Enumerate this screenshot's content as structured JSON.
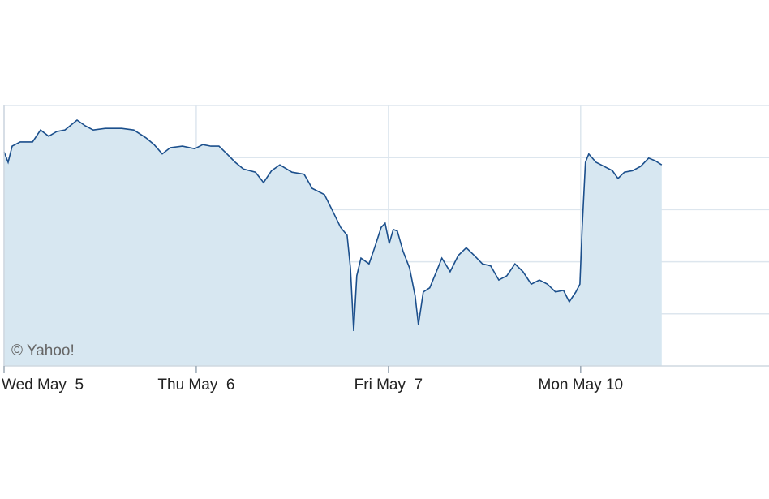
{
  "chart_data": {
    "type": "area",
    "annotation": "© Yahoo!",
    "x": [
      0,
      0.021,
      0.042,
      0.084,
      0.148,
      0.19,
      0.232,
      0.274,
      0.316,
      0.38,
      0.422,
      0.464,
      0.527,
      0.612,
      0.675,
      0.738,
      0.781,
      0.823,
      0.865,
      0.928,
      0.992,
      1.034,
      1.076,
      1.118,
      1.16,
      1.203,
      1.245,
      1.308,
      1.35,
      1.392,
      1.435,
      1.498,
      1.561,
      1.603,
      1.667,
      1.709,
      1.751,
      1.785,
      1.802,
      1.819,
      1.835,
      1.857,
      1.899,
      1.928,
      1.962,
      1.983,
      2.004,
      2.025,
      2.046,
      2.076,
      2.11,
      2.139,
      2.156,
      2.181,
      2.215,
      2.257,
      2.278,
      2.321,
      2.363,
      2.405,
      2.447,
      2.489,
      2.532,
      2.574,
      2.616,
      2.658,
      2.7,
      2.743,
      2.785,
      2.827,
      2.869,
      2.911,
      2.941,
      2.975,
      2.996,
      3.008,
      3.025,
      3.042,
      3.08,
      3.122,
      3.165,
      3.194,
      3.228,
      3.27,
      3.312,
      3.354,
      3.388,
      3.422
    ],
    "series": [
      {
        "color": "#1b4f8c",
        "fill": "#d7e7f1",
        "values": [
          4.11,
          3.91,
          4.22,
          4.3,
          4.3,
          4.53,
          4.41,
          4.5,
          4.53,
          4.72,
          4.61,
          4.53,
          4.56,
          4.56,
          4.53,
          4.38,
          4.25,
          4.07,
          4.19,
          4.22,
          4.17,
          4.25,
          4.22,
          4.22,
          4.07,
          3.91,
          3.78,
          3.72,
          3.52,
          3.75,
          3.86,
          3.72,
          3.68,
          3.41,
          3.29,
          2.98,
          2.66,
          2.51,
          1.88,
          0.67,
          1.73,
          2.07,
          1.96,
          2.27,
          2.66,
          2.74,
          2.35,
          2.62,
          2.59,
          2.2,
          1.88,
          1.34,
          0.79,
          1.42,
          1.5,
          1.88,
          2.07,
          1.81,
          2.12,
          2.27,
          2.12,
          1.96,
          1.92,
          1.65,
          1.73,
          1.96,
          1.81,
          1.57,
          1.65,
          1.57,
          1.42,
          1.45,
          1.23,
          1.42,
          1.57,
          2.66,
          3.91,
          4.07,
          3.91,
          3.83,
          3.75,
          3.6,
          3.72,
          3.75,
          3.83,
          3.99,
          3.94,
          3.86
        ]
      }
    ],
    "xlim": [
      0,
      3.98
    ],
    "xticks": [
      {
        "value": 0,
        "label": "Wed May  5"
      },
      {
        "value": 1,
        "label": "Thu May  6"
      },
      {
        "value": 2,
        "label": "Fri May  7"
      },
      {
        "value": 3,
        "label": "Mon May 10"
      }
    ],
    "ylim": [
      0,
      5
    ],
    "yticks": [
      1,
      2,
      3,
      4,
      5
    ],
    "grid": true
  }
}
